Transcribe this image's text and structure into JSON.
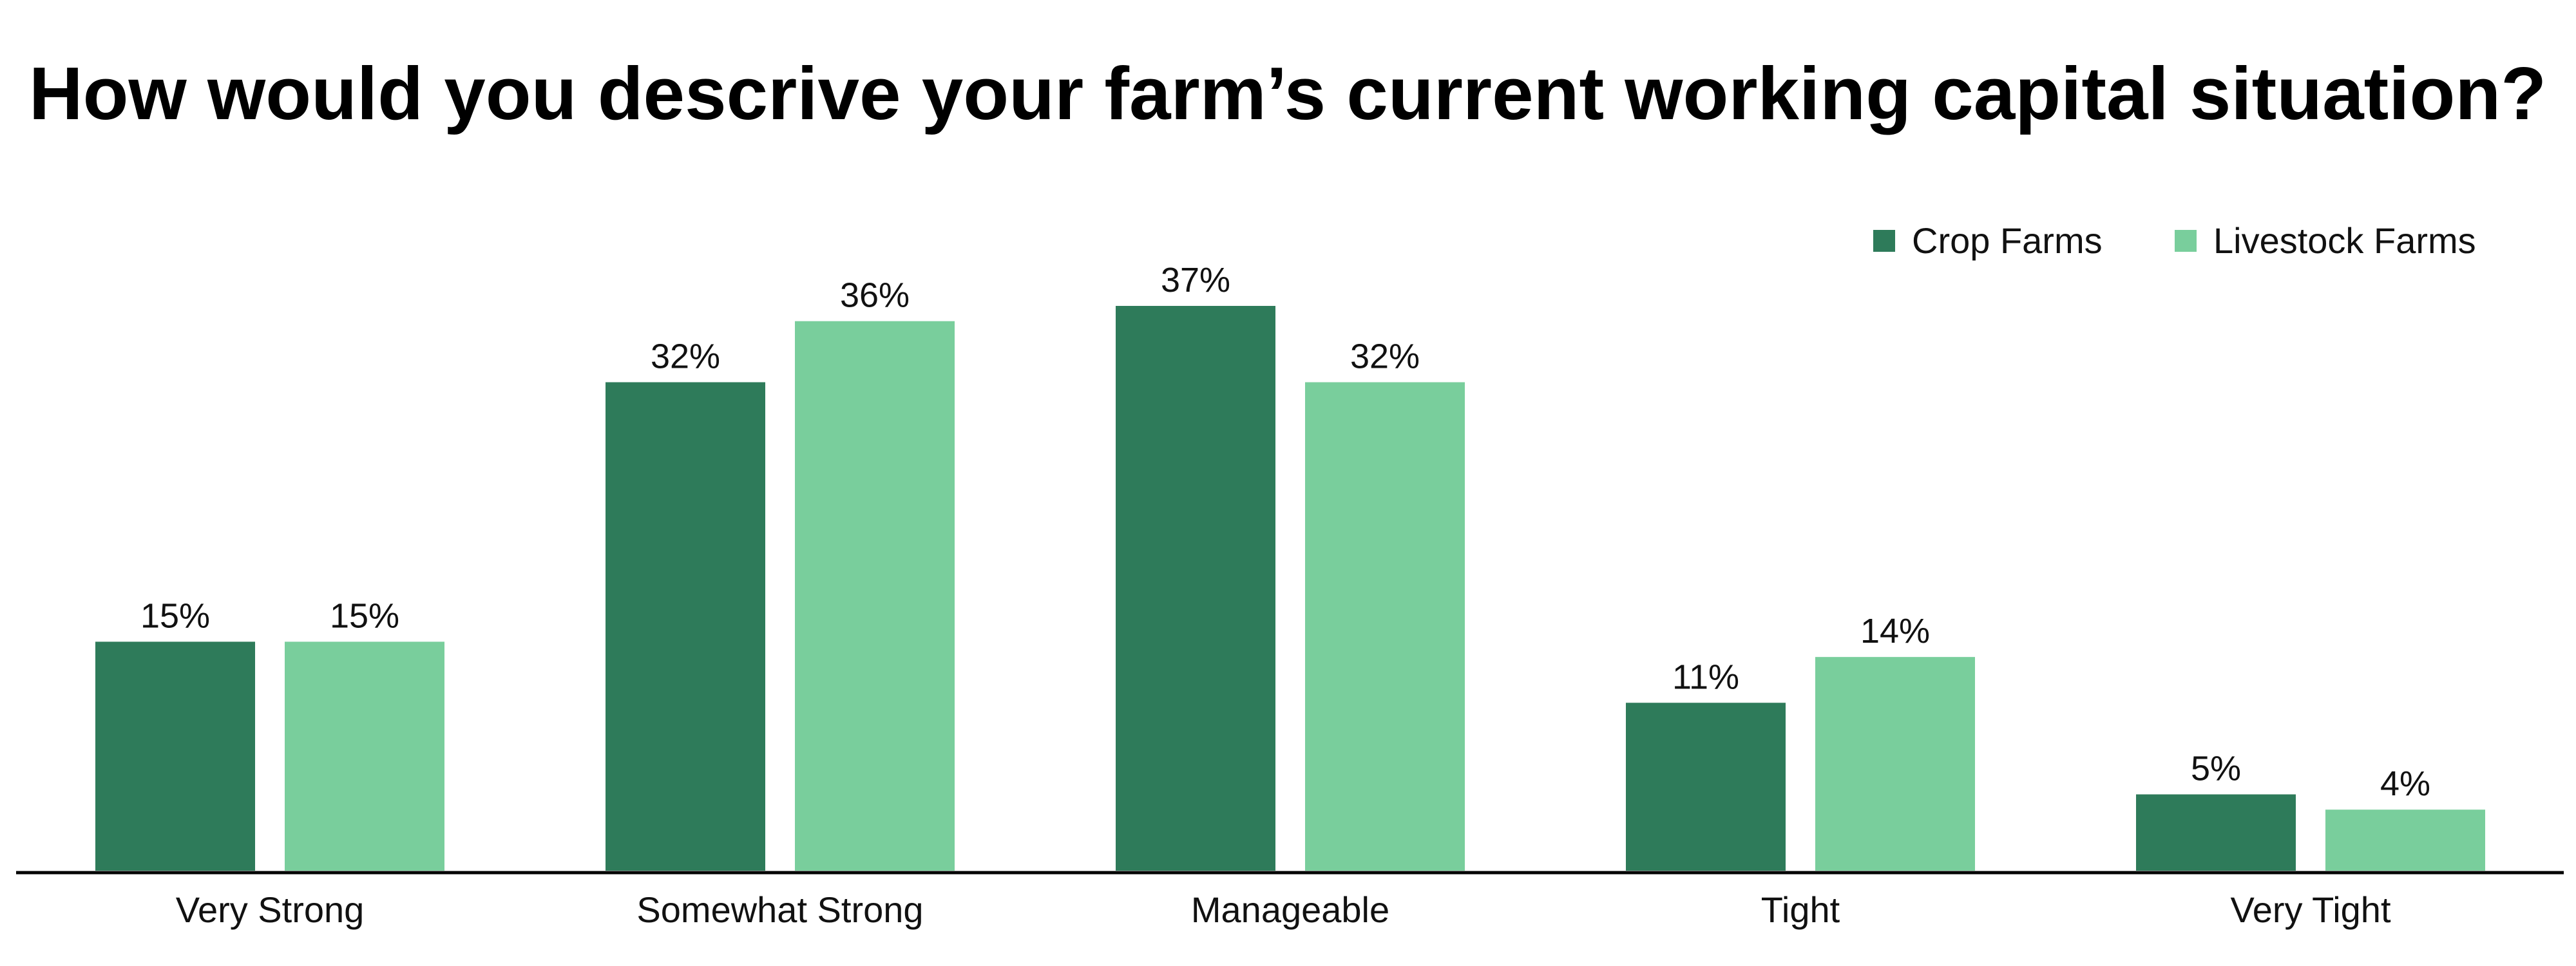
{
  "chart_data": {
    "type": "bar",
    "title": "How would you descrive your farm’s current working capital situation?",
    "categories": [
      "Very Strong",
      "Somewhat Strong",
      "Manageable",
      "Tight",
      "Very Tight"
    ],
    "series": [
      {
        "name": "Crop Farms",
        "color": "#2e7b5a",
        "values": [
          15,
          32,
          37,
          11,
          5
        ],
        "labels": [
          "15%",
          "32%",
          "37%",
          "11%",
          "5%"
        ]
      },
      {
        "name": "Livestock Farms",
        "color": "#79ce9c",
        "values": [
          15,
          36,
          32,
          14,
          4
        ],
        "labels": [
          "15%",
          "36%",
          "32%",
          "14%",
          "4%"
        ]
      }
    ],
    "ylim": [
      0,
      40
    ],
    "grid": false,
    "legend_position": "top-right",
    "axis_color": "#000000"
  }
}
